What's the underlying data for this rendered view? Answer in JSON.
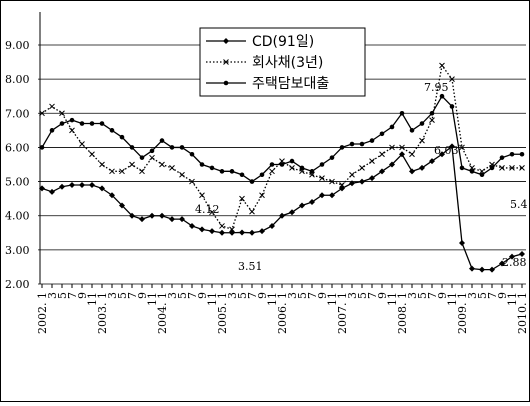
{
  "chart_data": {
    "type": "line",
    "categories": [
      "2002. 1",
      "3",
      "5",
      "7",
      "9",
      "11",
      "2003. 1",
      "3",
      "5",
      "7",
      "9",
      "11",
      "2004. 1",
      "3",
      "5",
      "7",
      "9",
      "11",
      "2005. 1",
      "3",
      "5",
      "7",
      "9",
      "11",
      "2006. 1",
      "3",
      "5",
      "7",
      "9",
      "11",
      "2007. 1",
      "3",
      "5",
      "7",
      "9",
      "11",
      "2008. 1",
      "3",
      "5",
      "7",
      "9",
      "11",
      "2009. 1",
      "3",
      "5",
      "7",
      "9",
      "11",
      "2010. 1"
    ],
    "series": [
      {
        "name": "CD(91일)",
        "color": "#000000",
        "marker": "diamond",
        "line_style": "solid",
        "values": [
          4.8,
          4.7,
          4.85,
          4.9,
          4.9,
          4.9,
          4.8,
          4.6,
          4.3,
          4.0,
          3.9,
          4.0,
          4.0,
          3.9,
          3.9,
          3.7,
          3.6,
          3.55,
          3.5,
          3.5,
          3.51,
          3.5,
          3.55,
          3.7,
          4.0,
          4.1,
          4.3,
          4.4,
          4.6,
          4.6,
          4.8,
          4.95,
          5.0,
          5.1,
          5.3,
          5.5,
          5.8,
          5.3,
          5.4,
          5.6,
          5.8,
          6.03,
          3.2,
          2.45,
          2.42,
          2.42,
          2.6,
          2.8,
          2.88
        ]
      },
      {
        "name": "회사채(3년)",
        "color": "#000000",
        "marker": "cross",
        "line_style": "dotted",
        "values": [
          7.0,
          7.2,
          7.0,
          6.5,
          6.1,
          5.8,
          5.5,
          5.3,
          5.3,
          5.5,
          5.3,
          5.7,
          5.5,
          5.4,
          5.2,
          5.0,
          4.6,
          4.1,
          3.7,
          3.6,
          4.5,
          4.12,
          4.6,
          5.3,
          5.6,
          5.4,
          5.3,
          5.2,
          5.1,
          5.0,
          4.9,
          5.2,
          5.4,
          5.6,
          5.8,
          6.0,
          6.0,
          5.8,
          6.2,
          6.8,
          8.4,
          8.0,
          6.0,
          5.4,
          5.3,
          5.5,
          5.4,
          5.4,
          5.4
        ]
      },
      {
        "name": "주택담보대출",
        "color": "#000000",
        "marker": "circle",
        "line_style": "solid",
        "values": [
          6.0,
          6.5,
          6.7,
          6.8,
          6.7,
          6.7,
          6.7,
          6.5,
          6.3,
          6.0,
          5.7,
          5.9,
          6.2,
          6.0,
          6.0,
          5.8,
          5.5,
          5.4,
          5.3,
          5.3,
          5.2,
          5.0,
          5.2,
          5.5,
          5.5,
          5.6,
          5.4,
          5.3,
          5.5,
          5.7,
          6.0,
          6.1,
          6.1,
          6.2,
          6.4,
          6.6,
          7.0,
          6.5,
          6.7,
          7.0,
          7.5,
          7.2,
          5.4,
          5.3,
          5.2,
          5.4,
          5.7,
          5.8,
          5.8
        ]
      }
    ],
    "ylim": [
      2,
      9
    ],
    "yticks": [
      {
        "value": 2,
        "label": "2.00"
      },
      {
        "value": 3,
        "label": "3.00"
      },
      {
        "value": 4,
        "label": "4.00"
      },
      {
        "value": 5,
        "label": "5.00"
      },
      {
        "value": 6,
        "label": "6.00"
      },
      {
        "value": 7,
        "label": "7.00"
      },
      {
        "value": 8,
        "label": "8.00"
      },
      {
        "value": 9,
        "label": "9.00"
      }
    ],
    "grid": true,
    "annotations": [
      "7.95",
      "6.03",
      "4.12",
      "3.51",
      "2.88",
      "5.4"
    ]
  }
}
